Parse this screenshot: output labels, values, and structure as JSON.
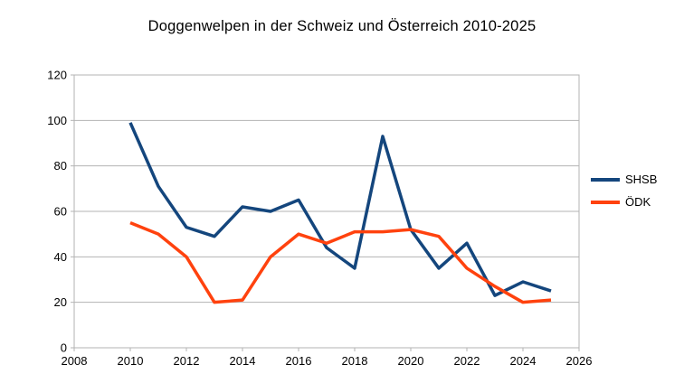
{
  "title": "Doggenwelpen in der Schweiz und Österreich 2010-2025",
  "chart_data": {
    "type": "line",
    "title": "Doggenwelpen in der Schweiz und Österreich 2010-2025",
    "x": [
      2010,
      2011,
      2012,
      2013,
      2014,
      2015,
      2016,
      2017,
      2018,
      2019,
      2020,
      2021,
      2022,
      2023,
      2024,
      2025
    ],
    "series": [
      {
        "name": "SHSB",
        "color": "#14467d",
        "values": [
          99,
          71,
          53,
          49,
          62,
          60,
          65,
          44,
          35,
          93,
          52,
          35,
          46,
          23,
          29,
          25
        ]
      },
      {
        "name": "ÖDK",
        "color": "#ff420e",
        "values": [
          55,
          50,
          40,
          20,
          21,
          40,
          50,
          46,
          51,
          51,
          52,
          49,
          35,
          27,
          20,
          21
        ]
      }
    ],
    "xlabel": "",
    "ylabel": "",
    "xlim": [
      2008,
      2026
    ],
    "ylim": [
      0,
      120
    ],
    "x_ticks": [
      2008,
      2010,
      2012,
      2014,
      2016,
      2018,
      2020,
      2022,
      2024,
      2026
    ],
    "y_ticks": [
      0,
      20,
      40,
      60,
      80,
      100,
      120
    ],
    "grid": "horizontal",
    "legend_position": "right"
  },
  "colors": {
    "grid": "#b3b3b3",
    "axis": "#b3b3b3",
    "text": "#000000",
    "background": "#ffffff"
  }
}
